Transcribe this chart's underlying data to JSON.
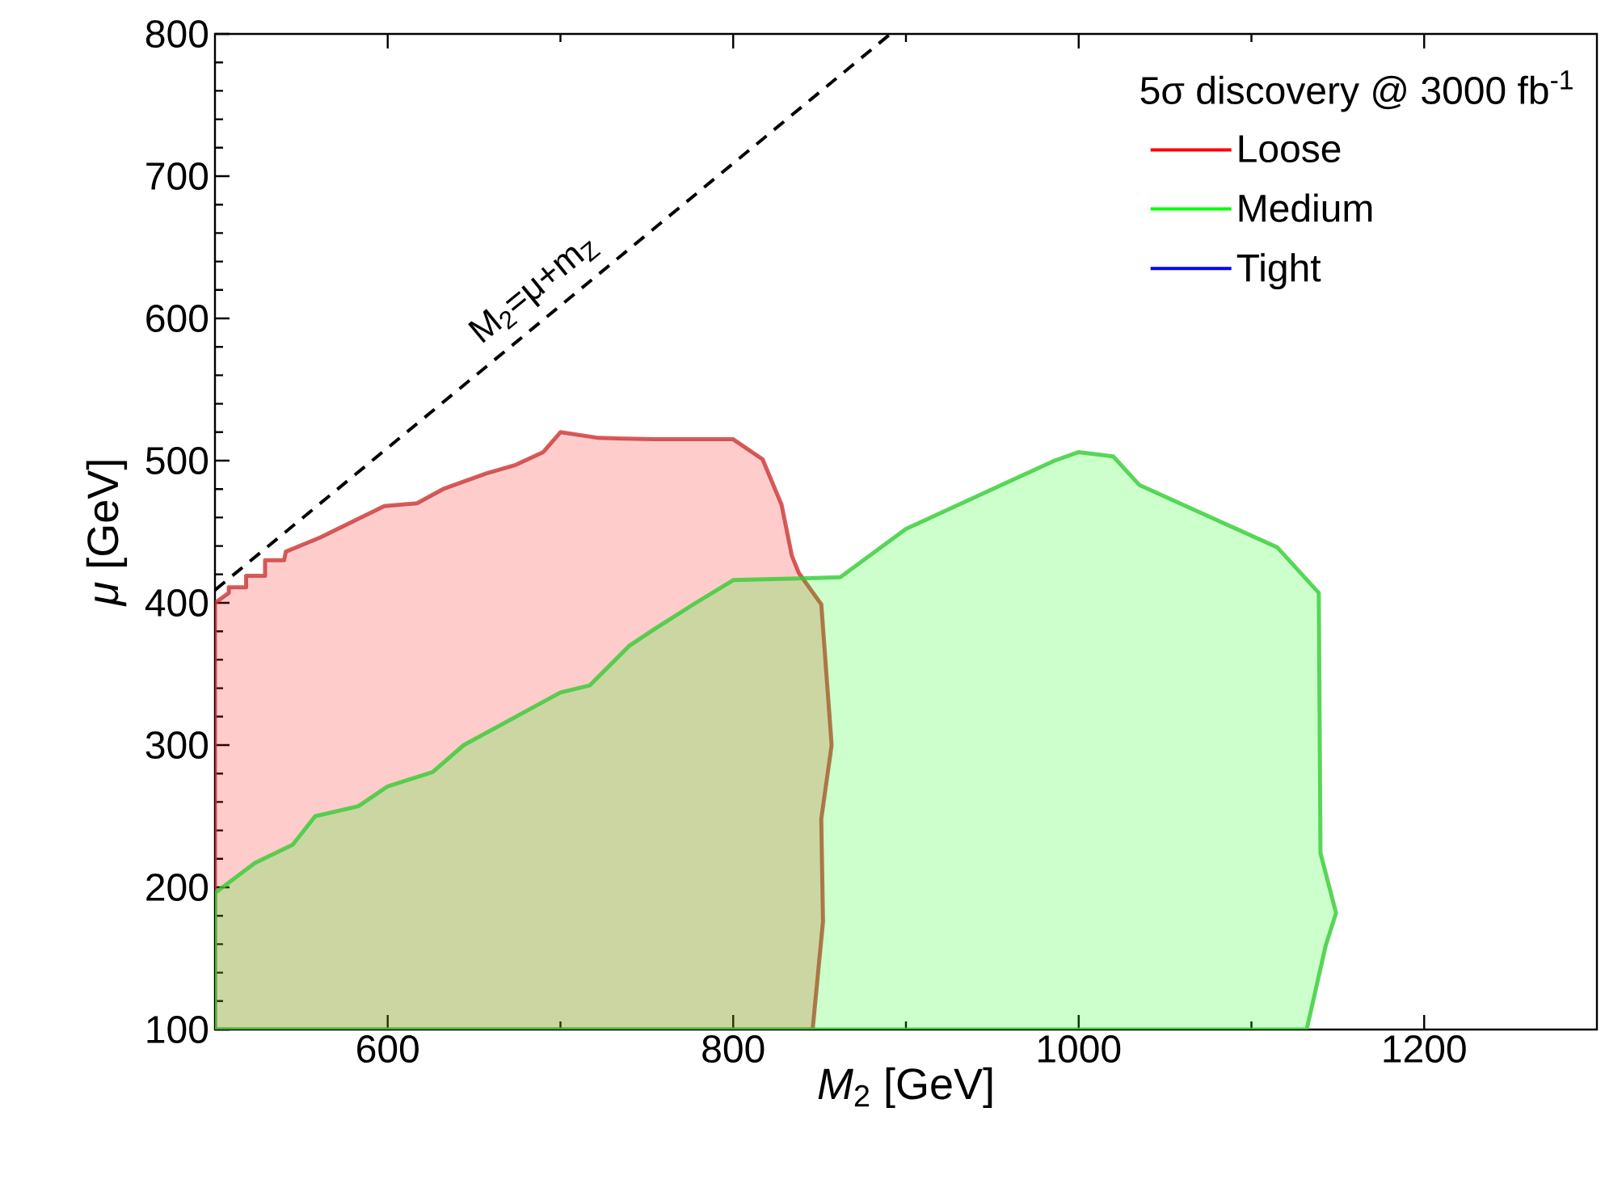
{
  "chart_data": {
    "type": "area",
    "xlabel": "*M*$_{2}$ [GeV]",
    "ylabel": "*μ* [GeV]",
    "legend_title": "5σ discovery @ 3000 fb$^{-1}$",
    "legend": "top right",
    "xlim": [
      500,
      1300
    ],
    "ylim": [
      100,
      800
    ],
    "xticks": [
      600,
      800,
      1000,
      1200
    ],
    "yticks": [
      100,
      200,
      300,
      400,
      500,
      600,
      700,
      800
    ],
    "annotations": [
      "M$_{2}$=μ+m$_{Z}$"
    ],
    "series": [
      {
        "name": "Loose",
        "color": "#ff0000",
        "x": [
          500,
          508,
          508,
          518,
          518,
          529,
          529,
          540,
          541,
          561,
          598,
          617,
          632,
          657,
          674,
          690,
          700,
          722,
          755,
          800,
          817,
          828,
          834,
          838,
          851,
          857,
          851,
          852,
          846,
          500
        ],
        "values": [
          400,
          407,
          411,
          411,
          419,
          419,
          430,
          430,
          436,
          446,
          468,
          470,
          480,
          491,
          497,
          506,
          520,
          516,
          515,
          515,
          501,
          469,
          433,
          421,
          399,
          300,
          248,
          176,
          100,
          100
        ]
      },
      {
        "name": "Medium",
        "color": "#00ff00",
        "x": [
          500,
          500,
          523,
          545,
          558,
          583,
          600,
          626,
          644,
          700,
          717,
          740,
          755,
          777,
          800,
          862,
          900,
          986,
          1000,
          1020,
          1035,
          1115,
          1139,
          1140,
          1149,
          1143,
          1132
        ],
        "values": [
          100,
          196,
          217,
          230,
          250,
          257,
          271,
          281,
          300,
          337,
          342,
          370,
          382,
          399,
          416,
          418,
          452,
          500,
          506,
          503,
          483,
          439,
          407,
          224,
          182,
          159,
          100
        ]
      },
      {
        "name": "Tight",
        "color": "#0000ff"
      },
      {
        "type": "line",
        "color": "#000000",
        "line_style": "dashed",
        "x": [
          500,
          891
        ],
        "values": [
          409,
          800
        ]
      }
    ]
  }
}
